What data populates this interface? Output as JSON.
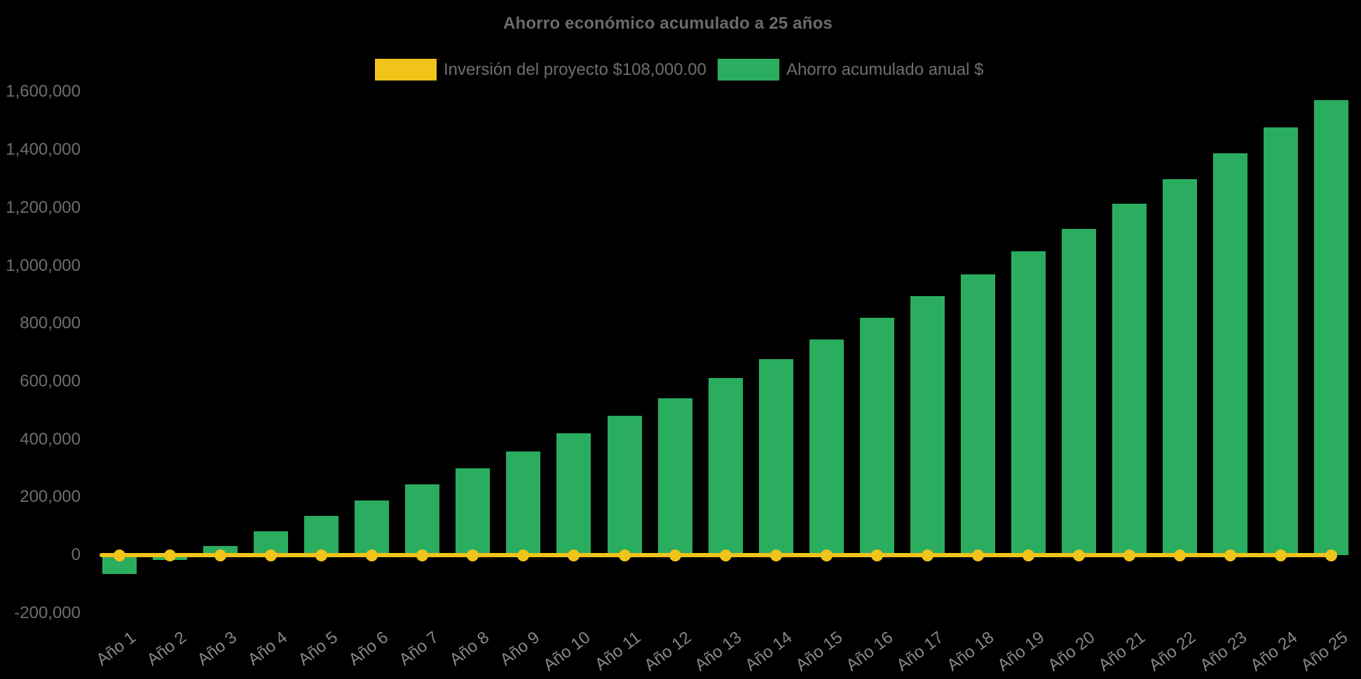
{
  "title": {
    "text": "Ahorro económico acumulado a 25 años"
  },
  "legend": {
    "items": [
      {
        "label": "Inversión del proyecto $108,000.00",
        "color": "#F0C419",
        "series": "line"
      },
      {
        "label": "Ahorro acumulado anual $",
        "color": "#2BAD60",
        "series": "bar"
      }
    ]
  },
  "colors": {
    "background": "#000000",
    "bar_green": "#2BAD60",
    "line_yellow": "#F0C419",
    "title_text": "#6b6b6b",
    "axis_text": "#6e6e6e",
    "x_axis_text": "#878787"
  },
  "chart_data": {
    "type": "bar",
    "title": "Ahorro económico acumulado a 25 años",
    "categories": [
      "Año 1",
      "Año 2",
      "Año 3",
      "Año 4",
      "Año 5",
      "Año 6",
      "Año 7",
      "Año 8",
      "Año 9",
      "Año 10",
      "Año 11",
      "Año 12",
      "Año 13",
      "Año 14",
      "Año 15",
      "Año 16",
      "Año 17",
      "Año 18",
      "Año 19",
      "Año 20",
      "Año 21",
      "Año 22",
      "Año 23",
      "Año 24",
      "Año 25"
    ],
    "series": [
      {
        "name": "Inversión del proyecto $108,000.00",
        "type": "line",
        "color": "#F0C419",
        "marker": "circle",
        "values": [
          0,
          0,
          0,
          0,
          0,
          0,
          0,
          0,
          0,
          0,
          0,
          0,
          0,
          0,
          0,
          0,
          0,
          0,
          0,
          0,
          0,
          0,
          0,
          0,
          0
        ]
      },
      {
        "name": "Ahorro acumulado anual $",
        "type": "bar",
        "color": "#2BAD60",
        "values": [
          -65000,
          -18000,
          32000,
          83000,
          135000,
          188000,
          244000,
          299000,
          358000,
          420000,
          482000,
          542000,
          611000,
          678000,
          746000,
          820000,
          895000,
          970000,
          1050000,
          1128000,
          1214000,
          1299000,
          1389000,
          1478000,
          1571000
        ]
      }
    ],
    "xlabel": "",
    "ylabel": "",
    "ylim": [
      -200000,
      1600000
    ],
    "ytick_step": 200000,
    "ytick_labels": [
      "-200,000",
      "0",
      "200,000",
      "400,000",
      "600,000",
      "800,000",
      "1,000,000",
      "1,200,000",
      "1,400,000",
      "1,600,000"
    ],
    "grid": false,
    "legend_position": "top",
    "background": "#000000"
  }
}
